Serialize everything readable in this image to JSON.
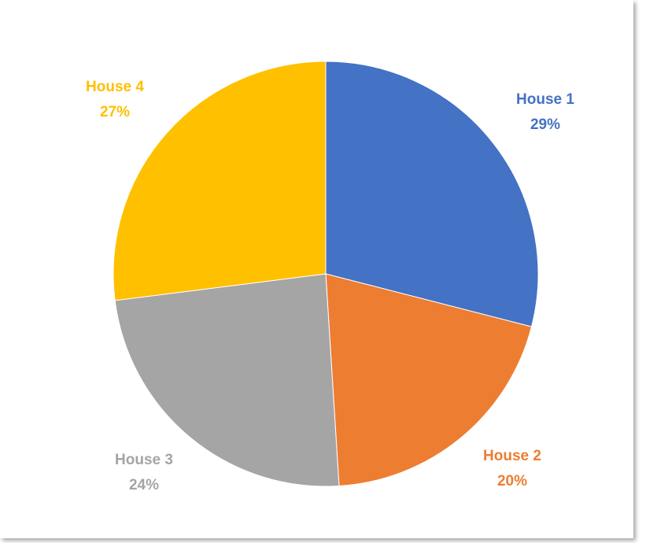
{
  "chart_data": {
    "type": "pie",
    "title": "",
    "start_angle_deg": 0,
    "direction": "clockwise",
    "legend": "none",
    "slices": [
      {
        "label": "House 1",
        "value": 29,
        "value_label": "29%",
        "color": "#4472C4"
      },
      {
        "label": "House 2",
        "value": 20,
        "value_label": "20%",
        "color": "#ED7D31"
      },
      {
        "label": "House 3",
        "value": 24,
        "value_label": "24%",
        "color": "#A5A5A5"
      },
      {
        "label": "House 4",
        "value": 27,
        "value_label": "27%",
        "color": "#FFC000"
      }
    ]
  }
}
